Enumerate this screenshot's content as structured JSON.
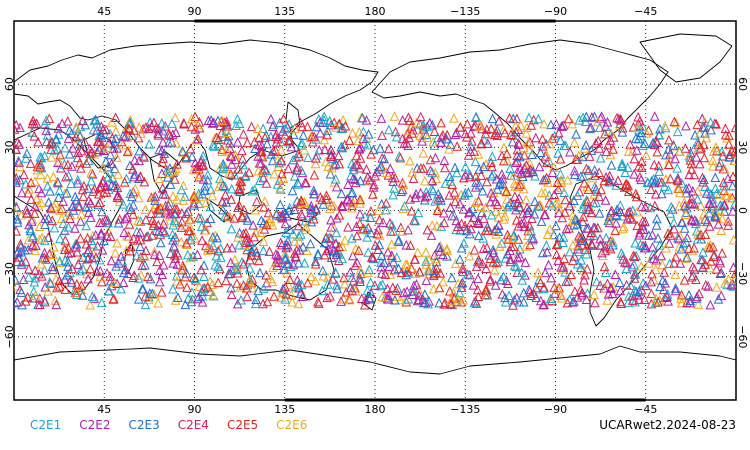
{
  "map": {
    "projection": "equirectangular",
    "lon_range": [
      0,
      360
    ],
    "lat_range": [
      -90,
      90
    ],
    "grid": true,
    "marker": "open-triangle",
    "lon_ticks": [
      {
        "lon": 45,
        "label": "45"
      },
      {
        "lon": 90,
        "label": "90"
      },
      {
        "lon": 135,
        "label": "135"
      },
      {
        "lon": 180,
        "label": "180"
      },
      {
        "lon": 225,
        "label": "−135"
      },
      {
        "lon": 270,
        "label": "−90"
      },
      {
        "lon": 315,
        "label": "−45"
      }
    ],
    "lat_ticks": [
      {
        "lat": 60,
        "label": "60"
      },
      {
        "lat": 30,
        "label": "30"
      },
      {
        "lat": 0,
        "label": "0"
      },
      {
        "lat": -30,
        "label": "−30"
      },
      {
        "lat": -60,
        "label": "−60"
      }
    ],
    "obs_lat_range": [
      -45,
      45
    ]
  },
  "legend": [
    {
      "label": "C2E1",
      "color": "#17a9cf"
    },
    {
      "label": "C2E2",
      "color": "#b01fb0"
    },
    {
      "label": "C2E3",
      "color": "#1f6fd6"
    },
    {
      "label": "C2E4",
      "color": "#d81e5b"
    },
    {
      "label": "C2E5",
      "color": "#e8231f"
    },
    {
      "label": "C2E6",
      "color": "#f5a81c"
    }
  ],
  "stamp": "UCARwet2.2024-08-23"
}
